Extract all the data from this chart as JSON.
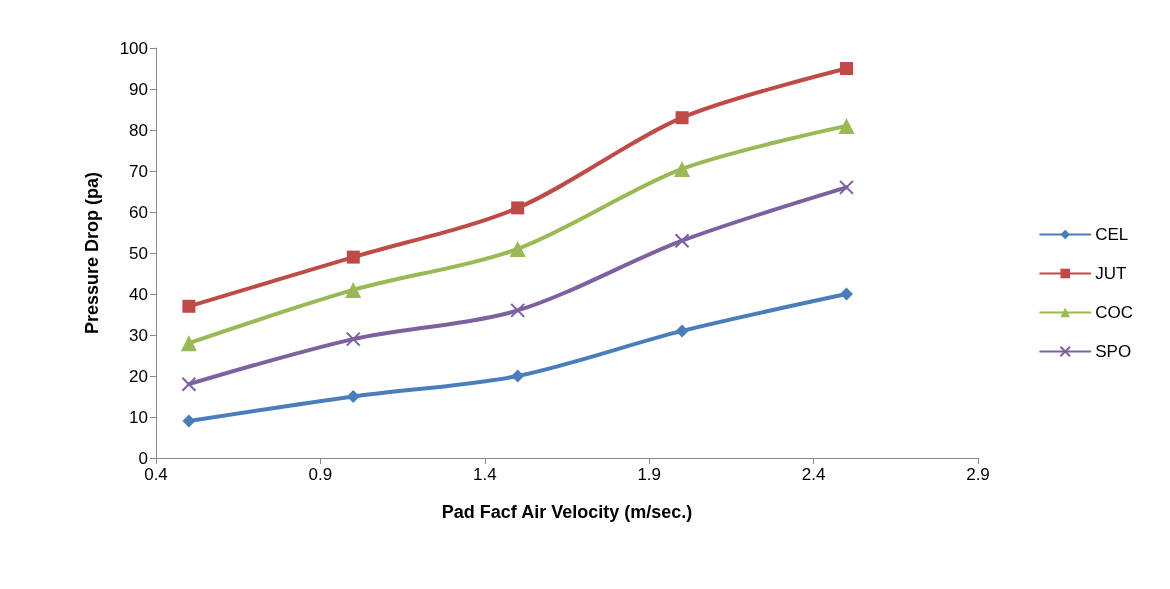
{
  "chart_data": {
    "type": "line",
    "xlabel": "Pad Facf Air Velocity (m/sec.)",
    "ylabel": "Pressure Drop (pa)",
    "x": [
      0.5,
      1.0,
      1.5,
      2.0,
      2.5
    ],
    "series": [
      {
        "name": "CEL",
        "color": "#4a7ebb",
        "marker": "diamond",
        "values": [
          9,
          15,
          20,
          31,
          40
        ]
      },
      {
        "name": "JUT",
        "color": "#be4b48",
        "marker": "square",
        "values": [
          37,
          49,
          61,
          83,
          95
        ]
      },
      {
        "name": "COC",
        "color": "#98b954",
        "marker": "triangle",
        "values": [
          28,
          41,
          51,
          70.5,
          81
        ]
      },
      {
        "name": "SPO",
        "color": "#7d60a0",
        "marker": "cross",
        "values": [
          18,
          29,
          36,
          53,
          66
        ]
      }
    ],
    "xlim": [
      0.4,
      2.9
    ],
    "xticks": [
      0.4,
      0.9,
      1.4,
      1.9,
      2.4,
      2.9
    ],
    "ylim": [
      0,
      100
    ],
    "yticks": [
      0,
      10,
      20,
      30,
      40,
      50,
      60,
      70,
      80,
      90,
      100
    ],
    "grid": false,
    "legend": "right",
    "line_style": "solid"
  }
}
